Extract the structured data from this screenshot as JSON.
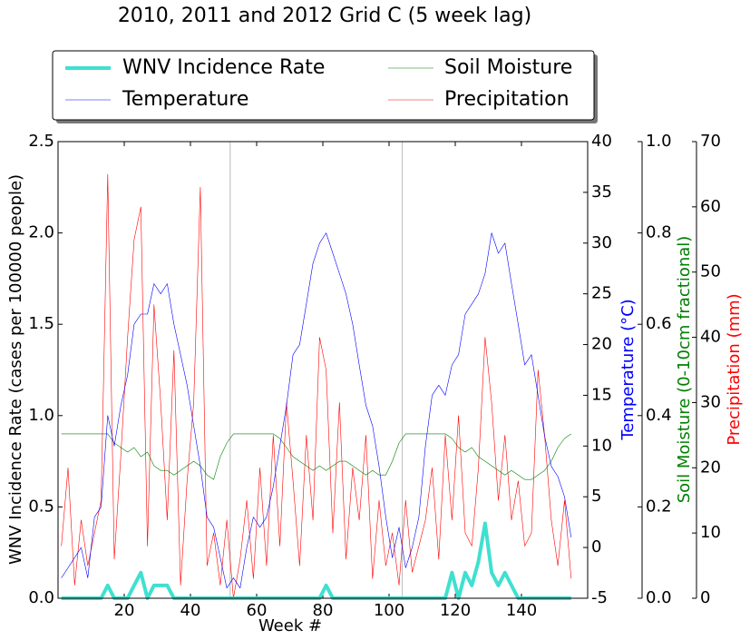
{
  "chart_data": {
    "type": "line",
    "title": "2010, 2011 and 2012 Grid C (5 week lag)",
    "xlabel": "Week #",
    "ylabel": "WNV Incidence Rate (cases per 100000 people)",
    "y2label": "Temperature (°C)",
    "y3label": "Soil Moisture (0-10cm fractional)",
    "y4label": "Precipitation (mm)",
    "xlim": [
      0,
      160
    ],
    "xticks": [
      20,
      40,
      60,
      80,
      100,
      120,
      140
    ],
    "ylim": [
      0,
      2.5
    ],
    "yticks": [
      {
        "value": 0,
        "label": "0.0"
      },
      0.5,
      {
        "value": 1,
        "label": "1.0"
      },
      1.5,
      {
        "value": 2,
        "label": "2.0"
      },
      2.5
    ],
    "y2lim": [
      -5,
      40
    ],
    "y2ticks": [
      -5,
      0,
      5,
      10,
      15,
      20,
      25,
      30,
      35,
      40
    ],
    "y3lim": [
      0,
      1
    ],
    "y3ticks": [
      {
        "value": 0,
        "label": "0.0"
      },
      0.2,
      0.4,
      0.6,
      0.8,
      {
        "value": 1,
        "label": "1.0"
      }
    ],
    "y4lim": [
      0,
      70
    ],
    "y4ticks": [
      0,
      10,
      20,
      30,
      40,
      50,
      60,
      70
    ],
    "vlines": [
      52,
      104
    ],
    "x": [
      1,
      3,
      5,
      7,
      9,
      11,
      13,
      15,
      17,
      19,
      21,
      23,
      25,
      27,
      29,
      31,
      33,
      35,
      37,
      39,
      41,
      43,
      45,
      47,
      49,
      51,
      53,
      55,
      57,
      59,
      61,
      63,
      65,
      67,
      69,
      71,
      73,
      75,
      77,
      79,
      81,
      83,
      85,
      87,
      89,
      91,
      93,
      95,
      97,
      99,
      101,
      103,
      105,
      107,
      109,
      111,
      113,
      115,
      117,
      119,
      121,
      123,
      125,
      127,
      129,
      131,
      133,
      135,
      137,
      139,
      141,
      143,
      145,
      147,
      149,
      151,
      153,
      155
    ],
    "series": [
      {
        "name": "WNV Incidence Rate",
        "color": "#40e0d0",
        "axis": "y",
        "width": 4,
        "values": [
          0,
          0,
          0,
          0,
          0,
          0,
          0,
          0.07,
          0,
          0,
          0,
          0.07,
          0.14,
          0,
          0.07,
          0.07,
          0.07,
          0,
          0,
          0,
          0,
          0,
          0,
          0,
          0,
          0,
          0,
          0,
          0,
          0,
          0,
          0,
          0,
          0,
          0,
          0,
          0,
          0,
          0,
          0,
          0.07,
          0,
          0,
          0,
          0,
          0,
          0,
          0,
          0,
          0,
          0,
          0,
          0,
          0,
          0,
          0,
          0,
          0,
          0,
          0.14,
          0,
          0.14,
          0.07,
          0.2,
          0.41,
          0.14,
          0.07,
          0.14,
          0.07,
          0,
          0,
          0,
          0,
          0,
          0,
          0,
          0,
          0
        ]
      },
      {
        "name": "Temperature",
        "color": "#0000ff",
        "axis": "y2",
        "width": 0.6,
        "values": [
          -3,
          -2,
          -1,
          0,
          -3,
          3,
          4,
          13,
          10,
          14,
          17,
          22,
          23,
          23,
          26,
          25,
          26,
          22,
          19,
          16,
          12,
          8,
          3,
          2,
          -1,
          -4,
          -3,
          -4,
          0,
          3,
          2,
          3,
          6,
          10,
          14,
          19,
          20,
          24,
          28,
          30,
          31,
          29,
          27,
          25,
          22,
          18,
          14,
          12,
          8,
          3,
          -1,
          2,
          -2,
          0,
          3,
          10,
          15,
          16,
          15,
          18,
          19,
          23,
          24,
          25,
          27,
          31,
          29,
          30,
          26,
          22,
          18,
          19,
          15,
          11,
          8,
          7,
          5,
          1
        ]
      },
      {
        "name": "Soil Moisture",
        "color": "#008000",
        "axis": "y3",
        "width": 0.6,
        "values": [
          0.36,
          0.36,
          0.36,
          0.36,
          0.36,
          0.36,
          0.36,
          0.36,
          0.34,
          0.33,
          0.32,
          0.33,
          0.31,
          0.32,
          0.29,
          0.28,
          0.28,
          0.27,
          0.28,
          0.29,
          0.3,
          0.29,
          0.27,
          0.26,
          0.31,
          0.34,
          0.36,
          0.36,
          0.36,
          0.36,
          0.36,
          0.36,
          0.36,
          0.35,
          0.33,
          0.31,
          0.3,
          0.29,
          0.28,
          0.29,
          0.28,
          0.29,
          0.3,
          0.3,
          0.29,
          0.28,
          0.27,
          0.28,
          0.27,
          0.27,
          0.3,
          0.34,
          0.36,
          0.36,
          0.36,
          0.36,
          0.36,
          0.36,
          0.36,
          0.35,
          0.33,
          0.32,
          0.33,
          0.31,
          0.3,
          0.29,
          0.28,
          0.27,
          0.28,
          0.27,
          0.26,
          0.26,
          0.27,
          0.28,
          0.3,
          0.33,
          0.35,
          0.36
        ]
      },
      {
        "name": "Precipitation",
        "color": "#ff0000",
        "axis": "y4",
        "width": 0.6,
        "values": [
          8,
          20,
          2,
          12,
          5,
          10,
          15,
          65,
          6,
          22,
          40,
          55,
          60,
          8,
          45,
          30,
          12,
          38,
          2,
          18,
          30,
          63,
          5,
          10,
          2,
          12,
          0,
          6,
          15,
          3,
          20,
          5,
          25,
          8,
          30,
          18,
          5,
          25,
          12,
          40,
          35,
          10,
          30,
          6,
          20,
          12,
          25,
          3,
          15,
          5,
          10,
          2,
          15,
          4,
          8,
          12,
          20,
          6,
          25,
          12,
          28,
          10,
          8,
          20,
          40,
          30,
          15,
          25,
          12,
          18,
          8,
          10,
          35,
          25,
          12,
          5,
          15,
          3
        ]
      }
    ]
  }
}
